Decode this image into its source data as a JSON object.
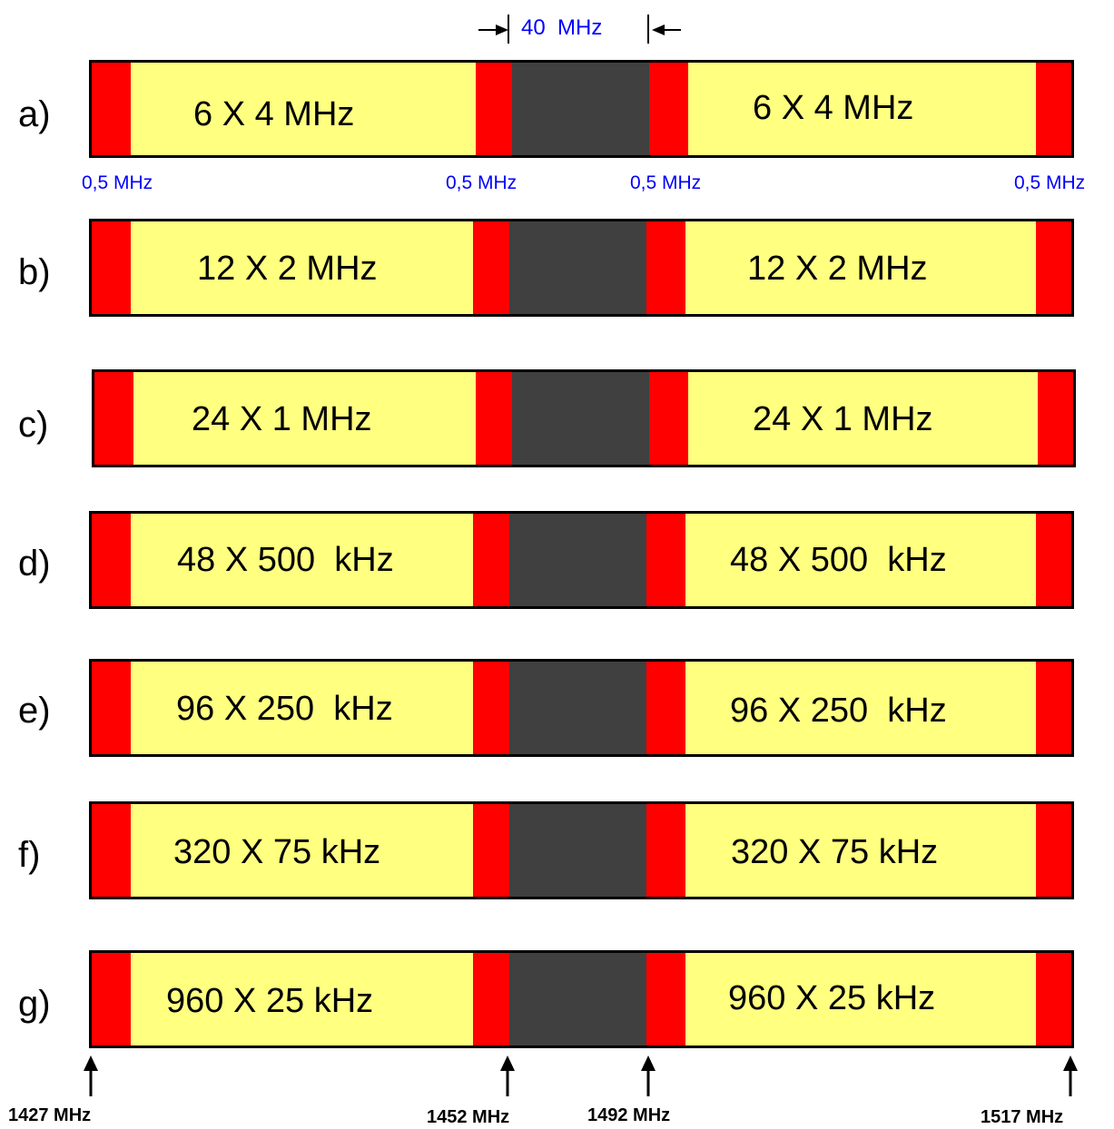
{
  "gap_width_label": "40  MHz",
  "guard_labels": [
    "0,5 MHz",
    "0,5 MHz",
    "0,5 MHz",
    "0,5 MHz"
  ],
  "rows": [
    {
      "label": "a)",
      "left_text": "6 X 4 MHz",
      "right_text": "6 X 4 MHz"
    },
    {
      "label": "b)",
      "left_text": "12 X 2 MHz",
      "right_text": "12 X 2 MHz"
    },
    {
      "label": "c)",
      "left_text": "24 X 1 MHz",
      "right_text": "24 X 1 MHz"
    },
    {
      "label": "d)",
      "left_text": "48 X 500  kHz",
      "right_text": "48 X 500  kHz"
    },
    {
      "label": "e)",
      "left_text": "96 X 250  kHz",
      "right_text": "96 X 250  kHz"
    },
    {
      "label": "f)",
      "left_text": "320 X 75 kHz",
      "right_text": "320 X 75 kHz"
    },
    {
      "label": "g)",
      "left_text": "960 X 25 kHz",
      "right_text": "960 X 25 kHz"
    }
  ],
  "frequency_markers": [
    "1427 MHz",
    "1452 MHz",
    "1492 MHz",
    "1517 MHz"
  ],
  "colors": {
    "subband": "#ffff80",
    "guard": "#ff0000",
    "gap": "#404040",
    "annotation": "#0000ff"
  }
}
